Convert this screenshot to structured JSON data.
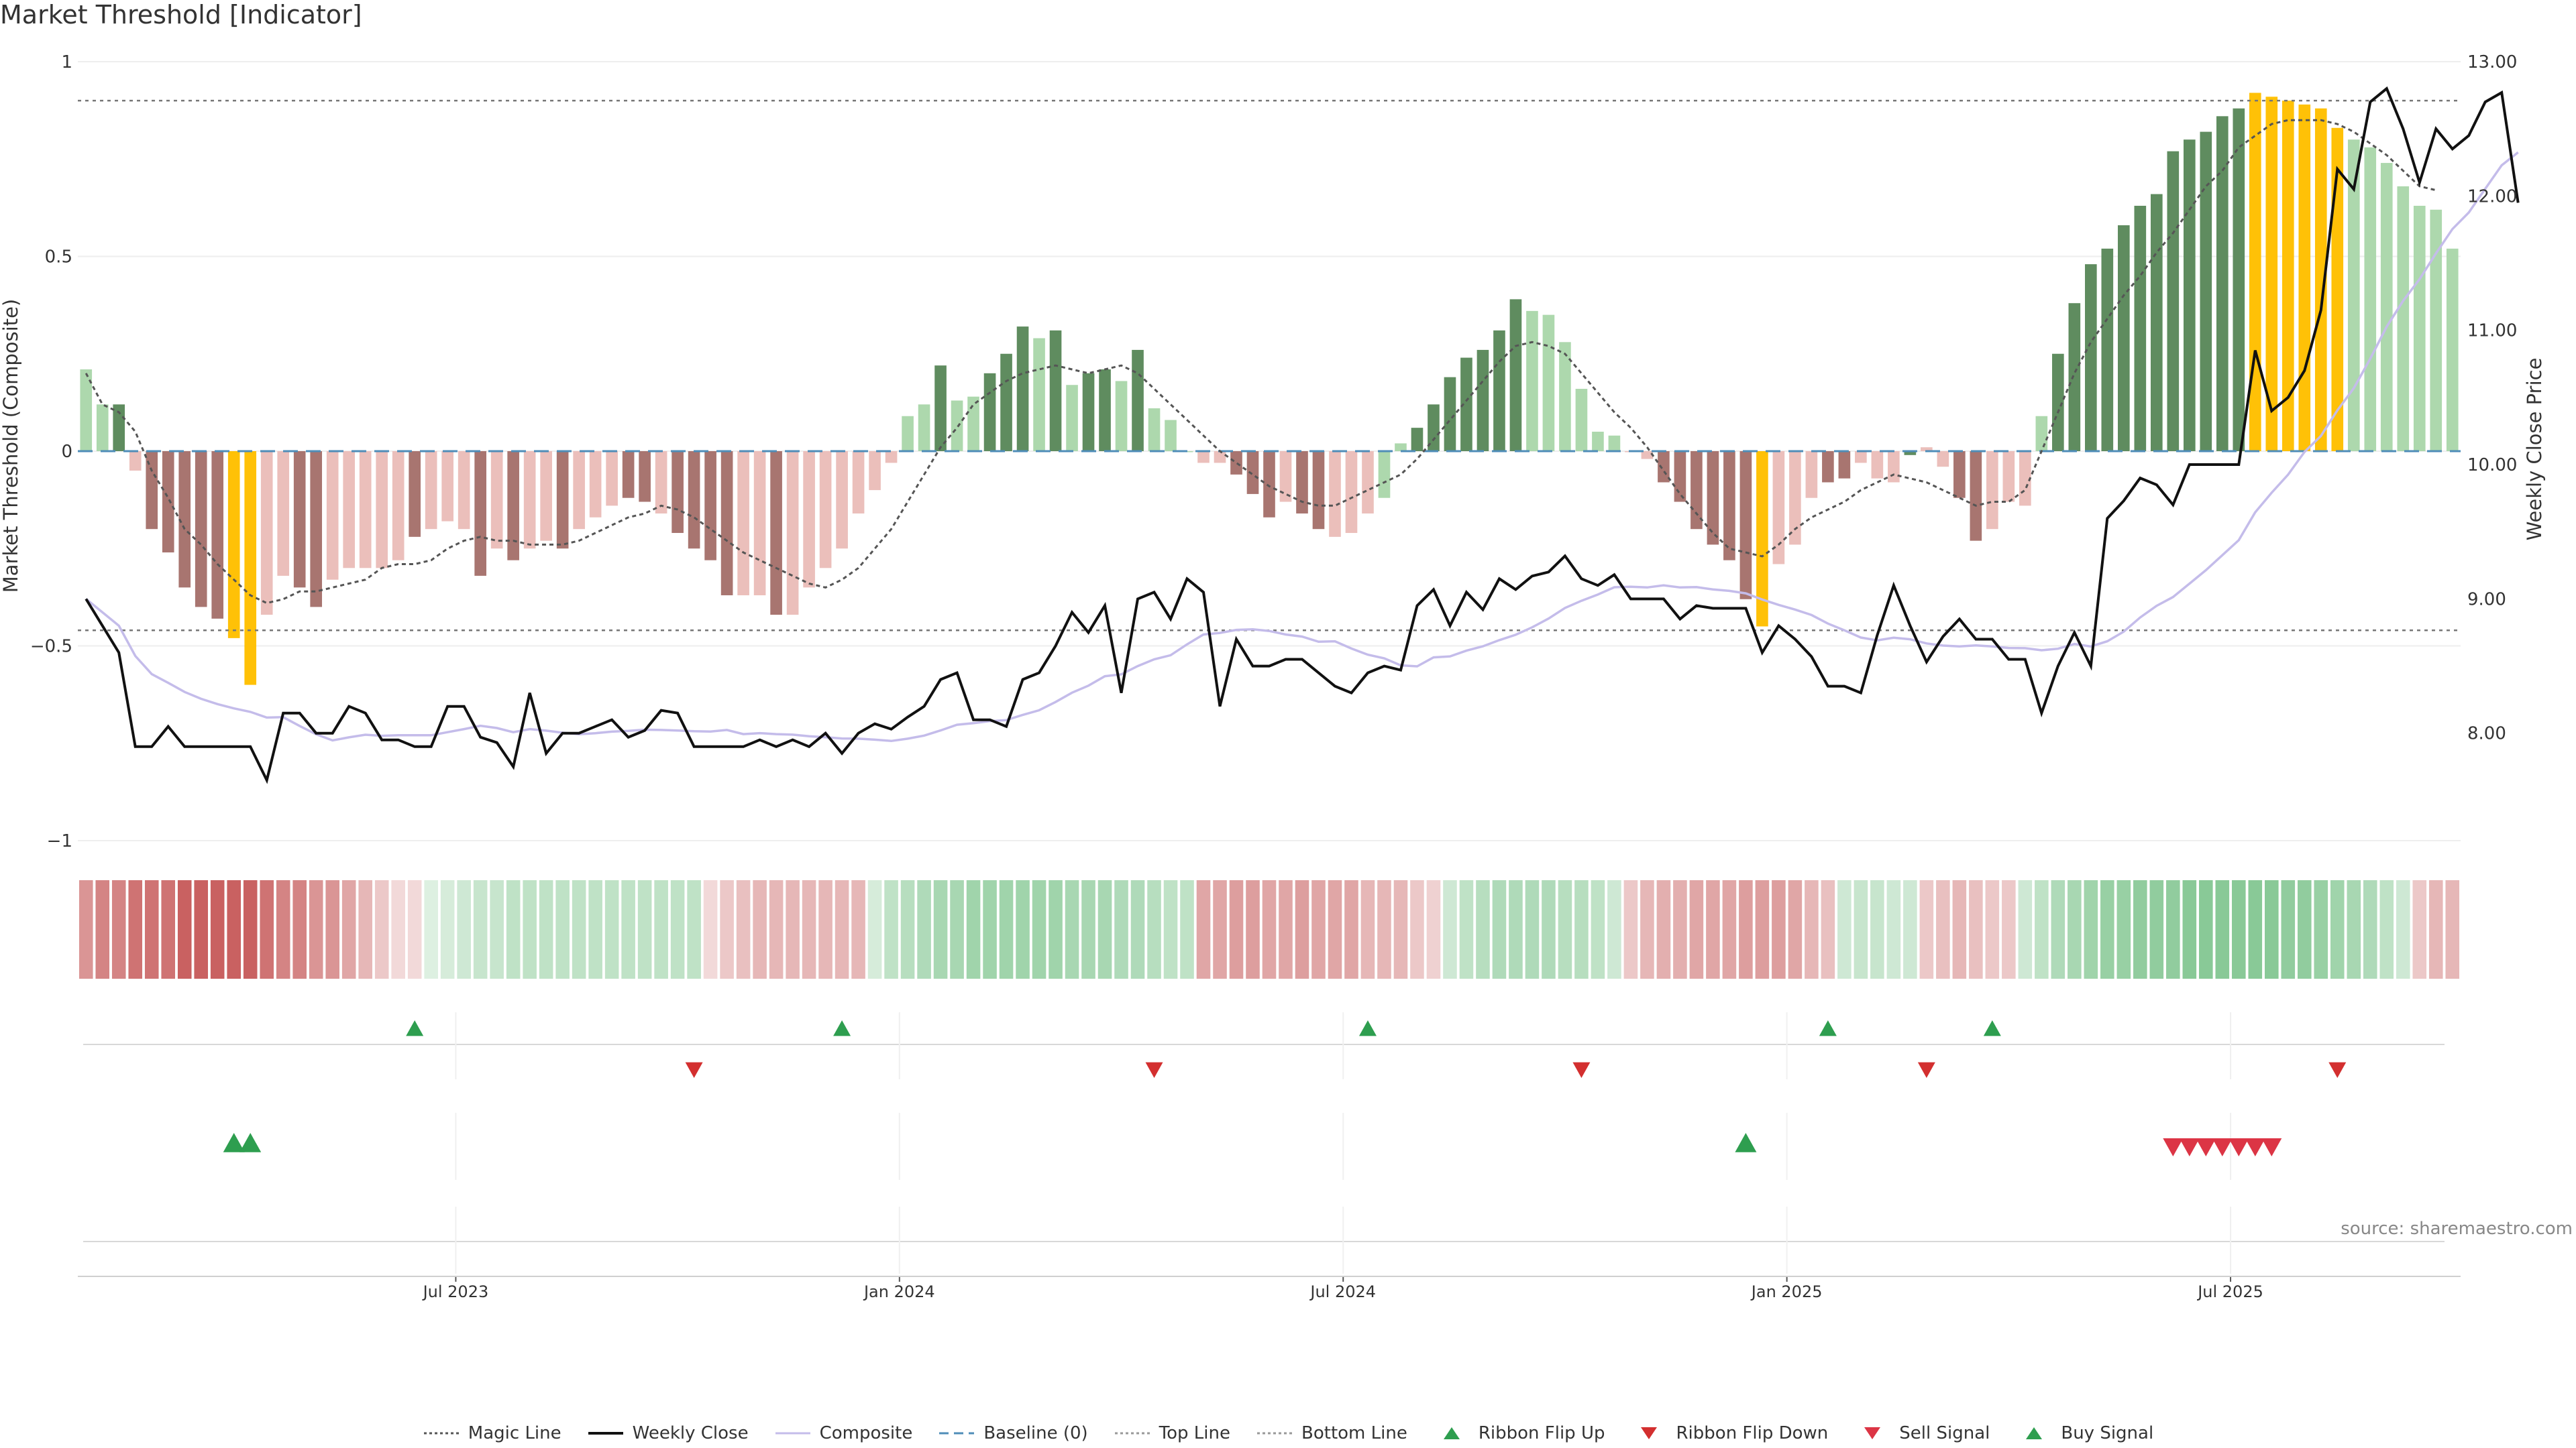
{
  "title": "Market Threshold [Indicator]",
  "source": "source: sharemaestro.com",
  "chart_data": {
    "type": "bar",
    "ylabel": "Market Threshold (Composite)",
    "ylabel_right": "Weekly Close Price",
    "ylim": [
      -1,
      1
    ],
    "ylim_right": [
      7.2,
      13.0
    ],
    "yticks": [
      "1",
      "0.5",
      "0",
      "−1"
    ],
    "yticks_right": [
      "13.00",
      "12.00",
      "11.00",
      "10.00",
      "9.00",
      "8.00"
    ],
    "xticks": [
      "Jul 2023",
      "Jan 2024",
      "Jul 2024",
      "Jan 2025",
      "Jul 2025"
    ],
    "xtick_week_index": [
      23,
      50,
      77,
      104,
      131
    ],
    "top_line": 0.9,
    "bottom_line": -0.46,
    "grid": true,
    "legend_position": "bottom",
    "colors": {
      "strong_pos": "#5f8c5f",
      "weak_pos": "#add8ad",
      "strong_neg": "#a87570",
      "weak_neg": "#ebbfbb",
      "extreme": "#ffc107",
      "weekly_close": "#111111",
      "composite": "#c4bcea",
      "magic": "#555555",
      "baseline": "#4f8db8",
      "ribbon_up": "#2e9e4f",
      "ribbon_down": "#d32f2f",
      "sell_signal": "#dc3545",
      "buy_signal": "#2e9e4f"
    },
    "bars": [
      0.21,
      0.12,
      0.12,
      -0.05,
      -0.2,
      -0.26,
      -0.35,
      -0.4,
      -0.43,
      -0.48,
      -0.6,
      -0.42,
      -0.32,
      -0.35,
      -0.4,
      -0.33,
      -0.3,
      -0.3,
      -0.3,
      -0.28,
      -0.22,
      -0.2,
      -0.18,
      -0.2,
      -0.32,
      -0.25,
      -0.28,
      -0.25,
      -0.23,
      -0.25,
      -0.2,
      -0.17,
      -0.14,
      -0.12,
      -0.13,
      -0.16,
      -0.21,
      -0.25,
      -0.28,
      -0.37,
      -0.37,
      -0.37,
      -0.42,
      -0.42,
      -0.35,
      -0.3,
      -0.25,
      -0.16,
      -0.1,
      -0.03,
      0.09,
      0.12,
      0.22,
      0.13,
      0.14,
      0.2,
      0.25,
      0.32,
      0.29,
      0.31,
      0.17,
      0.2,
      0.21,
      0.18,
      0.26,
      0.11,
      0.08,
      0.0,
      -0.03,
      -0.03,
      -0.06,
      -0.11,
      -0.17,
      -0.13,
      -0.16,
      -0.2,
      -0.22,
      -0.21,
      -0.16,
      -0.12,
      0.02,
      0.06,
      0.12,
      0.19,
      0.24,
      0.26,
      0.31,
      0.39,
      0.36,
      0.35,
      0.28,
      0.16,
      0.05,
      0.04,
      0.0,
      -0.02,
      -0.08,
      -0.13,
      -0.2,
      -0.24,
      -0.28,
      -0.38,
      -0.45,
      -0.29,
      -0.24,
      -0.12,
      -0.08,
      -0.07,
      -0.03,
      -0.07,
      -0.08,
      -0.01,
      0.01,
      -0.04,
      -0.12,
      -0.23,
      -0.2,
      -0.13,
      -0.14,
      0.09,
      0.25,
      0.38,
      0.48,
      0.52,
      0.58,
      0.63,
      0.66,
      0.77,
      0.8,
      0.82,
      0.86,
      0.88,
      0.92,
      0.91,
      0.9,
      0.89,
      0.88,
      0.83,
      0.8,
      0.78,
      0.74,
      0.68,
      0.63,
      0.62,
      0.52
    ],
    "bar_colors": [
      "weak_pos",
      "weak_pos",
      "strong_pos",
      "weak_neg",
      "strong_neg",
      "strong_neg",
      "strong_neg",
      "strong_neg",
      "strong_neg",
      "extreme",
      "extreme",
      "weak_neg",
      "weak_neg",
      "strong_neg",
      "strong_neg",
      "weak_neg",
      "weak_neg",
      "weak_neg",
      "weak_neg",
      "weak_neg",
      "strong_neg",
      "weak_neg",
      "weak_neg",
      "weak_neg",
      "strong_neg",
      "weak_neg",
      "strong_neg",
      "weak_neg",
      "weak_neg",
      "strong_neg",
      "weak_neg",
      "weak_neg",
      "weak_neg",
      "strong_neg",
      "strong_neg",
      "weak_neg",
      "strong_neg",
      "strong_neg",
      "strong_neg",
      "strong_neg",
      "weak_neg",
      "weak_neg",
      "strong_neg",
      "weak_neg",
      "weak_neg",
      "weak_neg",
      "weak_neg",
      "weak_neg",
      "weak_neg",
      "weak_neg",
      "weak_pos",
      "weak_pos",
      "strong_pos",
      "weak_pos",
      "weak_pos",
      "strong_pos",
      "strong_pos",
      "strong_pos",
      "weak_pos",
      "strong_pos",
      "weak_pos",
      "strong_pos",
      "strong_pos",
      "weak_pos",
      "strong_pos",
      "weak_pos",
      "weak_pos",
      "weak_pos",
      "weak_neg",
      "weak_neg",
      "strong_neg",
      "strong_neg",
      "strong_neg",
      "weak_neg",
      "strong_neg",
      "strong_neg",
      "weak_neg",
      "weak_neg",
      "weak_neg",
      "weak_pos",
      "weak_pos",
      "strong_pos",
      "strong_pos",
      "strong_pos",
      "strong_pos",
      "strong_pos",
      "strong_pos",
      "strong_pos",
      "weak_pos",
      "weak_pos",
      "weak_pos",
      "weak_pos",
      "weak_pos",
      "weak_pos",
      "weak_neg",
      "weak_neg",
      "strong_neg",
      "strong_neg",
      "strong_neg",
      "strong_neg",
      "strong_neg",
      "strong_neg",
      "extreme",
      "weak_neg",
      "weak_neg",
      "weak_neg",
      "strong_neg",
      "strong_neg",
      "weak_neg",
      "weak_neg",
      "weak_neg",
      "strong_pos",
      "weak_neg",
      "weak_neg",
      "strong_neg",
      "strong_neg",
      "weak_neg",
      "weak_neg",
      "weak_neg",
      "weak_pos",
      "strong_pos",
      "strong_pos",
      "strong_pos",
      "strong_pos",
      "strong_pos",
      "strong_pos",
      "strong_pos",
      "strong_pos",
      "strong_pos",
      "strong_pos",
      "strong_pos",
      "strong_pos",
      "extreme",
      "extreme",
      "extreme",
      "extreme",
      "extreme",
      "extreme",
      "weak_pos",
      "weak_pos",
      "weak_pos",
      "weak_pos",
      "weak_pos",
      "weak_pos",
      "weak_pos",
      "weak_pos"
    ],
    "magic_line": [
      0.2,
      0.12,
      0.1,
      0.05,
      -0.05,
      -0.12,
      -0.2,
      -0.24,
      -0.29,
      -0.33,
      -0.37,
      -0.39,
      -0.38,
      -0.36,
      -0.36,
      -0.35,
      -0.34,
      -0.33,
      -0.3,
      -0.29,
      -0.29,
      -0.28,
      -0.25,
      -0.23,
      -0.22,
      -0.23,
      -0.23,
      -0.24,
      -0.24,
      -0.24,
      -0.23,
      -0.21,
      -0.19,
      -0.17,
      -0.16,
      -0.14,
      -0.15,
      -0.17,
      -0.2,
      -0.23,
      -0.26,
      -0.28,
      -0.3,
      -0.32,
      -0.34,
      -0.35,
      -0.33,
      -0.3,
      -0.25,
      -0.2,
      -0.13,
      -0.06,
      0.01,
      0.06,
      0.12,
      0.15,
      0.18,
      0.2,
      0.21,
      0.22,
      0.21,
      0.2,
      0.21,
      0.22,
      0.2,
      0.16,
      0.12,
      0.08,
      0.04,
      0.0,
      -0.03,
      -0.06,
      -0.09,
      -0.11,
      -0.13,
      -0.14,
      -0.14,
      -0.12,
      -0.1,
      -0.08,
      -0.06,
      -0.02,
      0.03,
      0.08,
      0.13,
      0.18,
      0.23,
      0.27,
      0.28,
      0.27,
      0.25,
      0.2,
      0.15,
      0.1,
      0.06,
      0.01,
      -0.05,
      -0.11,
      -0.16,
      -0.21,
      -0.25,
      -0.26,
      -0.27,
      -0.24,
      -0.2,
      -0.17,
      -0.15,
      -0.13,
      -0.1,
      -0.08,
      -0.06,
      -0.07,
      -0.08,
      -0.1,
      -0.12,
      -0.14,
      -0.13,
      -0.13,
      -0.1,
      0.0,
      0.1,
      0.2,
      0.28,
      0.34,
      0.4,
      0.45,
      0.51,
      0.56,
      0.62,
      0.68,
      0.72,
      0.78,
      0.81,
      0.84,
      0.85,
      0.85,
      0.85,
      0.84,
      0.82,
      0.79,
      0.76,
      0.72,
      0.68,
      0.67
    ],
    "weekly_close": [
      9.0,
      8.8,
      8.6,
      7.9,
      7.9,
      8.05,
      7.9,
      7.9,
      7.9,
      7.9,
      7.9,
      7.65,
      8.15,
      8.15,
      8.0,
      8.0,
      8.2,
      8.15,
      7.95,
      7.95,
      7.9,
      7.9,
      8.2,
      8.2,
      7.97,
      7.93,
      7.75,
      8.3,
      7.85,
      8.0,
      8.0,
      8.05,
      8.1,
      7.97,
      8.02,
      8.17,
      8.15,
      7.9,
      7.9,
      7.9,
      7.9,
      7.95,
      7.9,
      7.95,
      7.9,
      8.0,
      7.85,
      8.0,
      8.07,
      8.03,
      8.12,
      8.2,
      8.4,
      8.45,
      8.1,
      8.1,
      8.05,
      8.4,
      8.45,
      8.65,
      8.9,
      8.75,
      8.95,
      8.3,
      9.0,
      9.05,
      8.85,
      9.15,
      9.05,
      8.2,
      8.7,
      8.5,
      8.5,
      8.55,
      8.55,
      8.45,
      8.35,
      8.3,
      8.45,
      8.5,
      8.47,
      8.95,
      9.07,
      8.8,
      9.05,
      8.92,
      9.15,
      9.07,
      9.17,
      9.2,
      9.32,
      9.15,
      9.1,
      9.18,
      9.0,
      9.0,
      9.0,
      8.85,
      8.95,
      8.93,
      8.93,
      8.93,
      8.6,
      8.8,
      8.7,
      8.57,
      8.35,
      8.35,
      8.3,
      8.73,
      9.1,
      8.8,
      8.53,
      8.72,
      8.85,
      8.7,
      8.7,
      8.55,
      8.55,
      8.15,
      8.5,
      8.75,
      8.5,
      9.6,
      9.73,
      9.9,
      9.85,
      9.7,
      10.0,
      10.0,
      10.0,
      10.0,
      10.85,
      10.4,
      10.5,
      10.7,
      11.15,
      12.2,
      12.05,
      12.7,
      12.8,
      12.5,
      12.1,
      12.5,
      12.35,
      12.45,
      12.7,
      12.77,
      11.95
    ]
  },
  "signals": {
    "ribbon_flip_up": [
      20,
      46,
      78,
      106,
      116
    ],
    "ribbon_flip_down": [
      37,
      65,
      91,
      112,
      137
    ],
    "buy_signal": [
      9,
      10,
      101
    ],
    "sell_signal": [
      127,
      128,
      129,
      130,
      131,
      132,
      133
    ]
  },
  "ribbon": [
    -0.5,
    -0.6,
    -0.6,
    -0.7,
    -0.7,
    -0.7,
    -0.8,
    -0.8,
    -0.8,
    -0.8,
    -0.8,
    -0.7,
    -0.6,
    -0.6,
    -0.5,
    -0.5,
    -0.4,
    -0.3,
    -0.2,
    -0.1,
    -0.1,
    0.1,
    0.15,
    0.2,
    0.25,
    0.25,
    0.3,
    0.3,
    0.3,
    0.3,
    0.3,
    0.3,
    0.3,
    0.3,
    0.3,
    0.3,
    0.3,
    0.3,
    -0.1,
    -0.2,
    -0.25,
    -0.3,
    -0.3,
    -0.3,
    -0.3,
    -0.3,
    -0.3,
    -0.3,
    0.15,
    0.3,
    0.35,
    0.4,
    0.45,
    0.45,
    0.5,
    0.5,
    0.5,
    0.5,
    0.5,
    0.5,
    0.45,
    0.45,
    0.45,
    0.4,
    0.4,
    0.35,
    0.3,
    0.3,
    -0.4,
    -0.4,
    -0.45,
    -0.45,
    -0.4,
    -0.4,
    -0.45,
    -0.4,
    -0.4,
    -0.4,
    -0.3,
    -0.3,
    -0.3,
    -0.2,
    -0.15,
    0.2,
    0.3,
    0.35,
    0.4,
    0.4,
    0.4,
    0.4,
    0.35,
    0.35,
    0.3,
    0.2,
    -0.2,
    -0.3,
    -0.35,
    -0.35,
    -0.4,
    -0.4,
    -0.4,
    -0.45,
    -0.45,
    -0.45,
    -0.4,
    -0.3,
    -0.25,
    0.2,
    0.25,
    0.25,
    0.2,
    0.2,
    -0.2,
    -0.25,
    -0.3,
    -0.25,
    -0.2,
    -0.2,
    0.2,
    0.3,
    0.4,
    0.45,
    0.5,
    0.55,
    0.55,
    0.6,
    0.6,
    0.6,
    0.65,
    0.65,
    0.65,
    0.65,
    0.65,
    0.65,
    0.6,
    0.6,
    0.55,
    0.5,
    0.45,
    0.4,
    0.3,
    0.2,
    -0.2,
    -0.3,
    -0.3
  ],
  "legend": [
    {
      "label": "Magic Line",
      "icon": "dotted-line"
    },
    {
      "label": "Weekly Close",
      "icon": "solid-line"
    },
    {
      "label": "Composite",
      "icon": "lavender-line"
    },
    {
      "label": "Baseline (0)",
      "icon": "dashed-line"
    },
    {
      "label": "Top Line",
      "icon": "dotted-line"
    },
    {
      "label": "Bottom Line",
      "icon": "dotted-line"
    },
    {
      "label": "Ribbon Flip Up",
      "icon": "triangle-up"
    },
    {
      "label": "Ribbon Flip Down",
      "icon": "triangle-down"
    },
    {
      "label": "Sell Signal",
      "icon": "triangle-down"
    },
    {
      "label": "Buy Signal",
      "icon": "triangle-up"
    }
  ]
}
